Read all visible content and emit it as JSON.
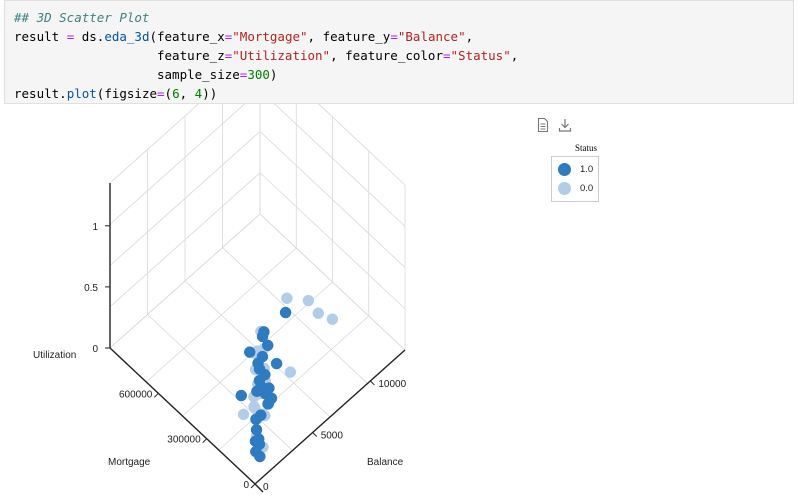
{
  "code": {
    "lines": [
      [
        {
          "t": "## 3D Scatter Plot",
          "c": "cm"
        }
      ],
      [
        {
          "t": "result ",
          "c": ""
        },
        {
          "t": "=",
          "c": "op"
        },
        {
          "t": " ds.",
          "c": ""
        },
        {
          "t": "eda_3d",
          "c": "fn"
        },
        {
          "t": "(feature_x",
          "c": ""
        },
        {
          "t": "=",
          "c": "op"
        },
        {
          "t": "\"Mortgage\"",
          "c": "st"
        },
        {
          "t": ", feature_y",
          "c": ""
        },
        {
          "t": "=",
          "c": "op"
        },
        {
          "t": "\"Balance\"",
          "c": "st"
        },
        {
          "t": ",",
          "c": ""
        }
      ],
      [
        {
          "t": "                   feature_z",
          "c": ""
        },
        {
          "t": "=",
          "c": "op"
        },
        {
          "t": "\"Utilization\"",
          "c": "st"
        },
        {
          "t": ", feature_color",
          "c": ""
        },
        {
          "t": "=",
          "c": "op"
        },
        {
          "t": "\"Status\"",
          "c": "st"
        },
        {
          "t": ",",
          "c": ""
        }
      ],
      [
        {
          "t": "                   sample_size",
          "c": ""
        },
        {
          "t": "=",
          "c": "op"
        },
        {
          "t": "300",
          "c": "num"
        },
        {
          "t": ")",
          "c": ""
        }
      ],
      [
        {
          "t": "result.",
          "c": ""
        },
        {
          "t": "plot",
          "c": "fn"
        },
        {
          "t": "(figsize",
          "c": ""
        },
        {
          "t": "=",
          "c": "op"
        },
        {
          "t": "(",
          "c": ""
        },
        {
          "t": "6",
          "c": "num"
        },
        {
          "t": ", ",
          "c": ""
        },
        {
          "t": "4",
          "c": "num"
        },
        {
          "t": "))",
          "c": ""
        }
      ]
    ]
  },
  "toolbar": {
    "doc_icon": "document-icon",
    "download_icon": "download-icon"
  },
  "colors": {
    "status_1": "#2e7bbf",
    "status_0": "#b3cde9",
    "axis": "#222222",
    "grid": "#d9d9d9"
  },
  "chart_data": {
    "type": "scatter",
    "title": "",
    "xlabel": "Mortgage",
    "ylabel": "Balance",
    "zlabel": "Utilization",
    "x_ticks": [
      "0",
      "300000",
      "600000"
    ],
    "y_ticks": [
      "0",
      "5000",
      "10000"
    ],
    "z_ticks": [
      "0",
      "0.5",
      "1"
    ],
    "legend": {
      "title": "Status",
      "entries": [
        "1.0",
        "0.0"
      ]
    },
    "series": [
      {
        "name": "1.0",
        "color": "#2e7bbf",
        "points": [
          [
            120000,
            2000,
            0.05
          ],
          [
            80000,
            1500,
            0.1
          ],
          [
            150000,
            3000,
            0.3
          ],
          [
            60000,
            1000,
            0.6
          ],
          [
            200000,
            4000,
            0.2
          ],
          [
            100000,
            2500,
            0.8
          ],
          [
            50000,
            1200,
            0.4
          ],
          [
            170000,
            3500,
            0.15
          ],
          [
            90000,
            800,
            0.9
          ],
          [
            130000,
            2200,
            0.5
          ],
          [
            40000,
            600,
            0.25
          ],
          [
            110000,
            1800,
            0.7
          ],
          [
            160000,
            2800,
            0.35
          ],
          [
            70000,
            1400,
            0.02
          ],
          [
            140000,
            2600,
            0.65
          ],
          [
            30000,
            500,
            0.45
          ],
          [
            190000,
            3800,
            0.1
          ],
          [
            85000,
            1700,
            0.55
          ],
          [
            125000,
            2400,
            0.85
          ],
          [
            55000,
            900,
            0.3
          ],
          [
            220000,
            4500,
            0.05
          ],
          [
            95000,
            2100,
            0.95
          ],
          [
            65000,
            1300,
            0.75
          ],
          [
            175000,
            3300,
            0.4
          ],
          [
            45000,
            700,
            0.15
          ],
          [
            260000,
            5500,
            0.2
          ],
          [
            300000,
            3000,
            0.1
          ],
          [
            240000,
            6000,
            0.6
          ]
        ]
      },
      {
        "name": "0.0",
        "color": "#b3cde9",
        "points": [
          [
            60000,
            1000,
            0.1
          ],
          [
            90000,
            1500,
            0.3
          ],
          [
            110000,
            2000,
            0.5
          ],
          [
            40000,
            800,
            0.7
          ],
          [
            130000,
            2500,
            0.2
          ],
          [
            70000,
            1200,
            0.9
          ],
          [
            150000,
            3000,
            0.4
          ],
          [
            50000,
            600,
            0.6
          ],
          [
            80000,
            1800,
            0.05
          ],
          [
            100000,
            2200,
            0.8
          ],
          [
            120000,
            1600,
            0.35
          ],
          [
            30000,
            400,
            0.55
          ],
          [
            140000,
            2800,
            0.15
          ],
          [
            75000,
            1100,
            0.75
          ],
          [
            105000,
            1900,
            0.45
          ],
          [
            55000,
            900,
            0.25
          ],
          [
            95000,
            2100,
            0.65
          ],
          [
            65000,
            1400,
            0.85
          ],
          [
            85000,
            1700,
            1.0
          ],
          [
            45000,
            700,
            0.95
          ],
          [
            160000,
            5000,
            0.9
          ],
          [
            180000,
            8000,
            0.5
          ],
          [
            200000,
            9500,
            0.3
          ],
          [
            170000,
            7000,
            0.7
          ],
          [
            250000,
            2500,
            0.05
          ],
          [
            210000,
            6000,
            0.15
          ],
          [
            115000,
            2400,
            0.6
          ],
          [
            135000,
            3200,
            0.25
          ]
        ]
      }
    ]
  }
}
